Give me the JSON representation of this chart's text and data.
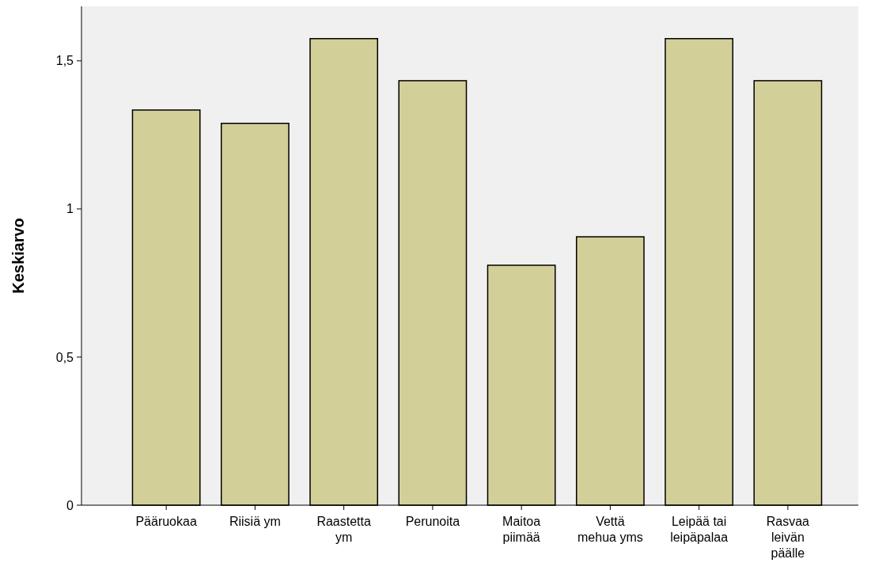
{
  "chart_data": {
    "type": "bar",
    "ylabel": "Keskiarvo",
    "categories": [
      "Pääruokaa",
      "Riisiä ym",
      "Raastetta ym",
      "Perunoita",
      "Maitoa piimää",
      "Vettä mehua yms",
      "Leipää tai leipäpalaa",
      "Rasvaa leivän päälle"
    ],
    "values": [
      1.334,
      1.289,
      1.575,
      1.433,
      0.81,
      0.906,
      1.575,
      1.433
    ],
    "color": "#d3cf98",
    "ylim": [
      0,
      1.684
    ],
    "yticks": [
      0,
      {
        "value": 0.5,
        "label": "0,5"
      },
      1,
      {
        "value": 1.5,
        "label": "1,5"
      }
    ],
    "grid": false
  }
}
